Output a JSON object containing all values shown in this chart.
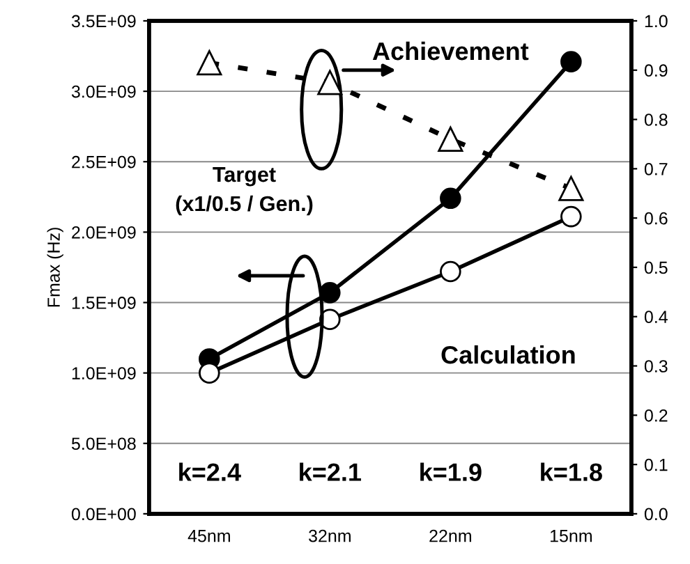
{
  "chart_data": {
    "type": "line",
    "ylabel": "Fmax (Hz)",
    "categories": [
      "45nm",
      "32nm",
      "22nm",
      "15nm"
    ],
    "series": [
      {
        "color": "#000000",
        "values": [
          1100000000.0,
          1570000000.0,
          2240000000.0,
          3210000000.0
        ],
        "marker": "circle",
        "line_style": "solid"
      },
      {
        "color": "#000000",
        "values": [
          1000000000.0,
          1380000000.0,
          1720000000.0,
          2110000000.0
        ],
        "marker": "circle",
        "line_style": "solid"
      },
      {
        "color": "#000000",
        "values": [
          0.915,
          0.875,
          0.76,
          0.66
        ],
        "marker": "triangle",
        "line_style": "dashed",
        "axis": "y2"
      }
    ],
    "ylim": [
      0,
      3500000000.0
    ],
    "yticks": [
      {
        "value": 0,
        "label": "0.0E+00"
      },
      {
        "value": 500000000.0,
        "label": "5.0E+08"
      },
      {
        "value": 1000000000.0,
        "label": "1.0E+09"
      },
      {
        "value": 1500000000.0,
        "label": "1.5E+09"
      },
      {
        "value": 2000000000.0,
        "label": "2.0E+09"
      },
      {
        "value": 2500000000.0,
        "label": "2.5E+09"
      },
      {
        "value": 3000000000.0,
        "label": "3.0E+09"
      },
      {
        "value": 3500000000.0,
        "label": "3.5E+09"
      }
    ],
    "y2lim": [
      0,
      1.0
    ],
    "y2ticks": [
      {
        "value": 0,
        "label": "0.0"
      },
      {
        "value": 0.1,
        "label": "0.1"
      },
      {
        "value": 0.2,
        "label": "0.2"
      },
      {
        "value": 0.3,
        "label": "0.3"
      },
      {
        "value": 0.4,
        "label": "0.4"
      },
      {
        "value": 0.5,
        "label": "0.5"
      },
      {
        "value": 0.6,
        "label": "0.6"
      },
      {
        "value": 0.7,
        "label": "0.7"
      },
      {
        "value": 0.8,
        "label": "0.8"
      },
      {
        "value": 0.9,
        "label": "0.9"
      },
      {
        "value": 1.0,
        "label": "1.0"
      }
    ],
    "grid": "y",
    "annotations": [
      "Achievement",
      "Target\n(x1/0.5 / Gen.)",
      "Calculation",
      "k=2.4",
      "k=2.1",
      "k=1.9",
      "k=1.8"
    ]
  }
}
